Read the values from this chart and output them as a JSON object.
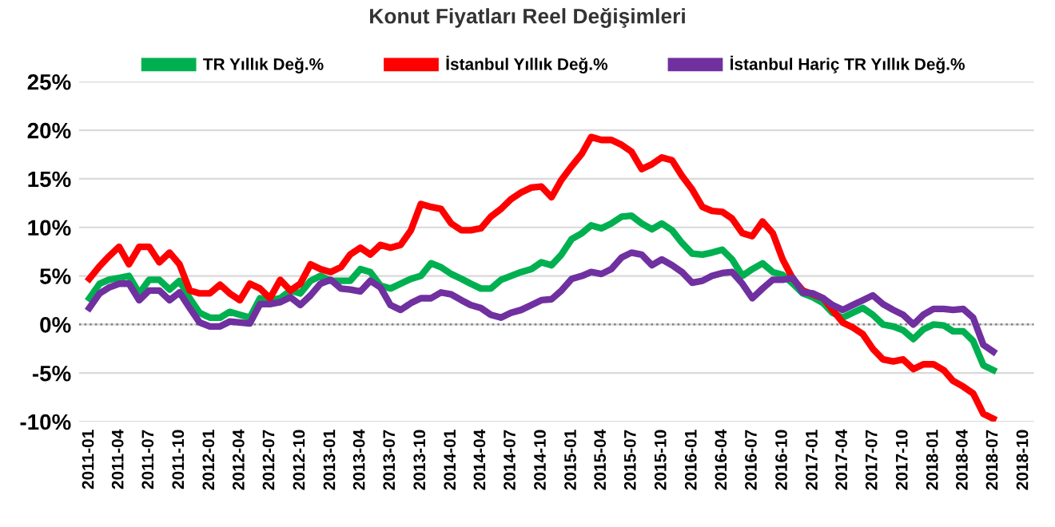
{
  "chart_data": {
    "type": "line",
    "title": "Konut Fiyatları Reel Değişimleri",
    "x": [
      "2011-01",
      "2011-02",
      "2011-03",
      "2011-04",
      "2011-05",
      "2011-06",
      "2011-07",
      "2011-08",
      "2011-09",
      "2011-10",
      "2011-11",
      "2011-12",
      "2012-01",
      "2012-02",
      "2012-03",
      "2012-04",
      "2012-05",
      "2012-06",
      "2012-07",
      "2012-08",
      "2012-09",
      "2012-10",
      "2012-11",
      "2012-12",
      "2013-01",
      "2013-02",
      "2013-03",
      "2013-04",
      "2013-05",
      "2013-06",
      "2013-07",
      "2013-08",
      "2013-09",
      "2013-10",
      "2013-11",
      "2013-12",
      "2014-01",
      "2014-02",
      "2014-03",
      "2014-04",
      "2014-05",
      "2014-06",
      "2014-07",
      "2014-08",
      "2014-09",
      "2014-10",
      "2014-11",
      "2014-12",
      "2015-01",
      "2015-02",
      "2015-03",
      "2015-04",
      "2015-05",
      "2015-06",
      "2015-07",
      "2015-08",
      "2015-09",
      "2015-10",
      "2015-11",
      "2015-12",
      "2016-01",
      "2016-02",
      "2016-03",
      "2016-04",
      "2016-05",
      "2016-06",
      "2016-07",
      "2016-08",
      "2016-09",
      "2016-10",
      "2016-11",
      "2016-12",
      "2017-01",
      "2017-02",
      "2017-03",
      "2017-04",
      "2017-05",
      "2017-06",
      "2017-07",
      "2017-08",
      "2017-09",
      "2017-10",
      "2017-11",
      "2017-12",
      "2018-01",
      "2018-02",
      "2018-03",
      "2018-04",
      "2018-05",
      "2018-06",
      "2018-07"
    ],
    "series": [
      {
        "name": "TR Yıllık Değ.%",
        "color": "#00b050",
        "values": [
          2.7,
          4.2,
          4.6,
          4.8,
          5.0,
          3.2,
          4.6,
          4.6,
          3.6,
          4.5,
          2.7,
          1.2,
          0.7,
          0.7,
          1.3,
          1.0,
          0.7,
          2.7,
          2.5,
          2.7,
          3.5,
          3.2,
          4.5,
          5.0,
          4.5,
          4.5,
          4.5,
          5.7,
          5.4,
          4.0,
          3.7,
          4.2,
          4.7,
          5.0,
          6.3,
          5.9,
          5.2,
          4.7,
          4.2,
          3.7,
          3.7,
          4.6,
          5.0,
          5.4,
          5.7,
          6.4,
          6.1,
          7.2,
          8.8,
          9.4,
          10.2,
          9.9,
          10.4,
          11.1,
          11.2,
          10.4,
          9.8,
          10.4,
          9.7,
          8.4,
          7.3,
          7.2,
          7.4,
          7.7,
          6.7,
          5.0,
          5.7,
          6.3,
          5.4,
          5.1,
          4.2,
          3.2,
          2.8,
          2.2,
          1.2,
          0.7,
          1.2,
          1.7,
          1.0,
          0.0,
          -0.2,
          -0.6,
          -1.5,
          -0.5,
          0.0,
          -0.1,
          -0.7,
          -0.7,
          -1.7,
          -4.2,
          -4.7
        ]
      },
      {
        "name": "İstanbul Yıllık Değ.%",
        "color": "#ff0000",
        "values": [
          4.7,
          6.0,
          7.0,
          8.0,
          6.2,
          8.0,
          8.0,
          6.4,
          7.4,
          6.2,
          3.5,
          3.2,
          3.2,
          4.1,
          3.2,
          2.5,
          4.2,
          3.7,
          2.7,
          4.6,
          3.5,
          4.2,
          6.2,
          5.7,
          5.4,
          5.9,
          7.2,
          7.9,
          7.2,
          8.2,
          7.9,
          8.2,
          9.7,
          12.4,
          12.1,
          11.9,
          10.4,
          9.7,
          9.7,
          9.9,
          11.1,
          11.9,
          12.9,
          13.6,
          14.1,
          14.2,
          13.1,
          14.9,
          16.3,
          17.6,
          19.3,
          19.0,
          19.0,
          18.5,
          17.8,
          16.0,
          16.5,
          17.2,
          16.9,
          15.3,
          13.9,
          12.1,
          11.7,
          11.6,
          10.9,
          9.4,
          9.1,
          10.6,
          9.4,
          6.7,
          4.7,
          3.5,
          3.1,
          2.7,
          1.5,
          0.2,
          -0.3,
          -1.0,
          -2.5,
          -3.6,
          -3.8,
          -3.6,
          -4.6,
          -4.1,
          -4.1,
          -4.7,
          -5.8,
          -6.4,
          -7.1,
          -9.2,
          -9.7
        ]
      },
      {
        "name": "İstanbul Hariç TR Yıllık Değ.%",
        "color": "#7030a0",
        "values": [
          1.7,
          3.2,
          3.8,
          4.2,
          4.2,
          2.5,
          3.5,
          3.5,
          2.5,
          3.3,
          1.7,
          0.2,
          -0.2,
          -0.2,
          0.3,
          0.2,
          0.1,
          2.1,
          2.1,
          2.3,
          2.8,
          2.0,
          3.0,
          4.2,
          4.6,
          3.7,
          3.6,
          3.4,
          4.5,
          3.8,
          2.0,
          1.5,
          2.2,
          2.7,
          2.7,
          3.3,
          3.1,
          2.5,
          2.0,
          1.7,
          1.0,
          0.7,
          1.2,
          1.5,
          2.0,
          2.5,
          2.6,
          3.5,
          4.7,
          5.0,
          5.4,
          5.2,
          5.7,
          6.9,
          7.4,
          7.2,
          6.1,
          6.7,
          6.1,
          5.4,
          4.3,
          4.5,
          5.0,
          5.3,
          5.4,
          4.2,
          2.7,
          3.7,
          4.6,
          4.6,
          4.8,
          3.3,
          3.2,
          2.7,
          2.0,
          1.5,
          2.0,
          2.5,
          3.0,
          2.1,
          1.5,
          1.0,
          0.0,
          1.0,
          1.6,
          1.6,
          1.5,
          1.6,
          0.7,
          -2.1,
          -2.8
        ]
      }
    ],
    "xlim": [
      "2010-12",
      "2018-11"
    ],
    "xticks": [
      "2011-01",
      "2011-04",
      "2011-07",
      "2011-10",
      "2012-01",
      "2012-04",
      "2012-07",
      "2012-10",
      "2013-01",
      "2013-04",
      "2013-07",
      "2013-10",
      "2014-01",
      "2014-04",
      "2014-07",
      "2014-10",
      "2015-01",
      "2015-04",
      "2015-07",
      "2015-10",
      "2016-01",
      "2016-04",
      "2016-07",
      "2016-10",
      "2017-01",
      "2017-04",
      "2017-07",
      "2017-10",
      "2018-01",
      "2018-04",
      "2018-07",
      "2018-10"
    ],
    "ylim": [
      -10,
      25
    ],
    "yticks": [
      {
        "value": -10,
        "label": "-10%"
      },
      {
        "value": -5,
        "label": "-5%"
      },
      {
        "value": 0,
        "label": "0%"
      },
      {
        "value": 5,
        "label": "5%"
      },
      {
        "value": 10,
        "label": "10%"
      },
      {
        "value": 15,
        "label": "15%"
      },
      {
        "value": 20,
        "label": "20%"
      },
      {
        "value": 25,
        "label": "25%"
      }
    ],
    "ref_lines": [
      {
        "axis": "y",
        "value": 0,
        "color": "#808080",
        "line_style": "dotted"
      }
    ],
    "grid": "y",
    "legend": "top",
    "line_style": "solid",
    "marker": "none"
  }
}
